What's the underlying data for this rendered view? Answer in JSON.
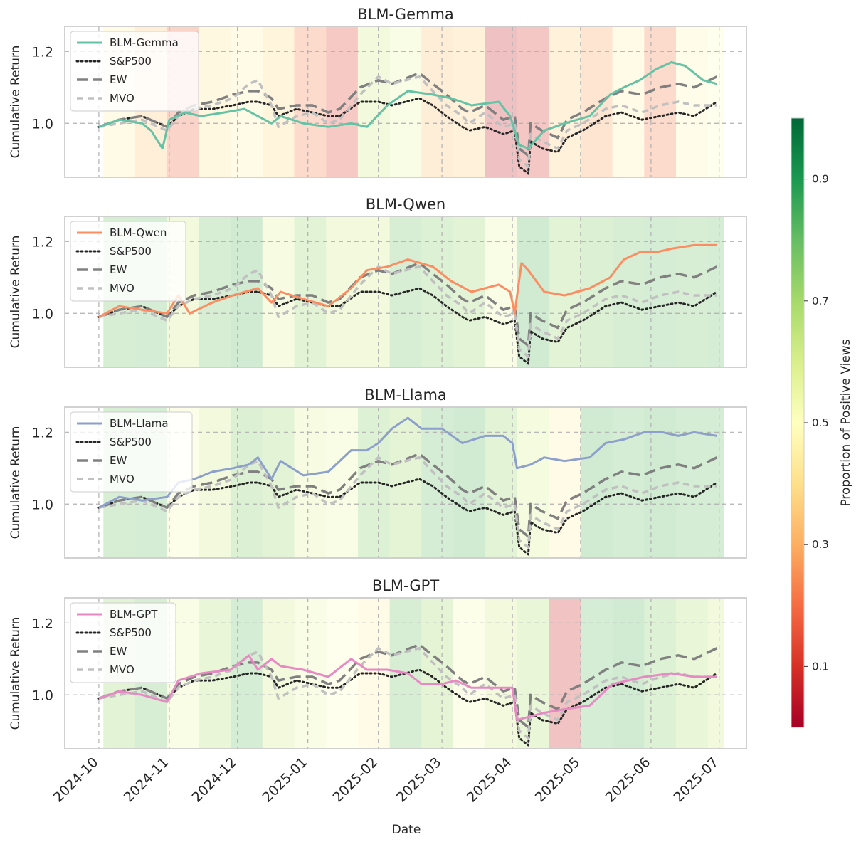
{
  "chart_data": {
    "type": "line",
    "x_label": "Date",
    "y_label": "Cumulative Return",
    "x_ticks": [
      "2024-10",
      "2024-11",
      "2024-12",
      "2025-01",
      "2025-02",
      "2025-03",
      "2025-04",
      "2025-05",
      "2025-06",
      "2025-07"
    ],
    "y_ticks": [
      "1.0",
      "1.2"
    ],
    "y_range": [
      0.85,
      1.27
    ],
    "grid": true,
    "legend_position": "upper-left",
    "colorbar": {
      "label": "Proportion of Positive Views",
      "ticks": [
        "0.1",
        "0.3",
        "0.5",
        "0.7",
        "0.9"
      ],
      "range": [
        0.0,
        1.0
      ],
      "colormap": "RdYlGn"
    },
    "week_starts": [
      "2024-10-03",
      "2024-10-17",
      "2024-10-31",
      "2024-11-14",
      "2024-11-28",
      "2024-12-12",
      "2024-12-26",
      "2025-01-09",
      "2025-01-23",
      "2025-02-06",
      "2025-02-20",
      "2025-03-06",
      "2025-03-20",
      "2025-04-03",
      "2025-04-17",
      "2025-05-01",
      "2025-05-15",
      "2025-05-29",
      "2025-06-12",
      "2025-06-26"
    ],
    "benchmarks": {
      "x": [
        "2024-10-01",
        "2024-10-10",
        "2024-10-20",
        "2024-10-31",
        "2024-11-05",
        "2024-11-12",
        "2024-11-20",
        "2024-11-29",
        "2024-12-06",
        "2024-12-10",
        "2024-12-16",
        "2024-12-19",
        "2024-12-27",
        "2025-01-03",
        "2025-01-10",
        "2025-01-15",
        "2025-01-24",
        "2025-02-01",
        "2025-02-07",
        "2025-02-19",
        "2025-02-25",
        "2025-03-03",
        "2025-03-10",
        "2025-03-13",
        "2025-03-20",
        "2025-03-28",
        "2025-04-02",
        "2025-04-04",
        "2025-04-08",
        "2025-04-09",
        "2025-04-14",
        "2025-04-21",
        "2025-04-25",
        "2025-05-02",
        "2025-05-12",
        "2025-05-19",
        "2025-05-28",
        "2025-06-05",
        "2025-06-13",
        "2025-06-20",
        "2025-06-30"
      ],
      "series": [
        {
          "name": "S&P500",
          "values": [
            0.99,
            1.01,
            1.02,
            0.99,
            1.02,
            1.04,
            1.04,
            1.05,
            1.06,
            1.06,
            1.05,
            1.02,
            1.04,
            1.03,
            1.02,
            1.02,
            1.06,
            1.06,
            1.05,
            1.07,
            1.05,
            1.02,
            0.99,
            0.98,
            0.99,
            0.97,
            0.98,
            0.88,
            0.86,
            0.95,
            0.93,
            0.92,
            0.96,
            0.98,
            1.02,
            1.03,
            1.01,
            1.02,
            1.03,
            1.02,
            1.06
          ]
        },
        {
          "name": "EW",
          "values": [
            0.99,
            1.01,
            1.02,
            0.99,
            1.03,
            1.05,
            1.06,
            1.08,
            1.09,
            1.09,
            1.07,
            1.04,
            1.05,
            1.05,
            1.03,
            1.04,
            1.1,
            1.12,
            1.11,
            1.14,
            1.11,
            1.08,
            1.04,
            1.03,
            1.05,
            1.01,
            1.02,
            0.93,
            0.91,
            1.0,
            0.98,
            0.96,
            1.01,
            1.03,
            1.07,
            1.09,
            1.08,
            1.1,
            1.11,
            1.1,
            1.13
          ]
        },
        {
          "name": "MVO",
          "values": [
            0.99,
            1.0,
            1.01,
            0.98,
            1.02,
            1.04,
            1.05,
            1.07,
            1.11,
            1.12,
            1.05,
            0.99,
            1.02,
            1.03,
            1.0,
            1.01,
            1.08,
            1.13,
            1.11,
            1.13,
            1.09,
            1.05,
            1.02,
            1.0,
            1.03,
            0.99,
            1.0,
            0.9,
            0.88,
            0.97,
            0.95,
            0.93,
            0.98,
            1.0,
            1.04,
            1.05,
            1.03,
            1.05,
            1.06,
            1.05,
            1.05
          ]
        }
      ]
    },
    "panels": [
      {
        "title": "BLM-Gemma",
        "series_name": "BLM-Gemma",
        "color": "#66c2a5",
        "x": [
          "2024-10-01",
          "2024-10-10",
          "2024-10-20",
          "2024-10-24",
          "2024-10-29",
          "2024-11-01",
          "2024-11-08",
          "2024-11-15",
          "2024-11-25",
          "2024-12-04",
          "2024-12-10",
          "2024-12-16",
          "2024-12-20",
          "2024-12-30",
          "2025-01-10",
          "2025-01-20",
          "2025-01-27",
          "2025-02-05",
          "2025-02-14",
          "2025-02-25",
          "2025-03-05",
          "2025-03-14",
          "2025-03-26",
          "2025-03-31",
          "2025-04-04",
          "2025-04-08",
          "2025-04-15",
          "2025-04-24",
          "2025-05-05",
          "2025-05-14",
          "2025-05-20",
          "2025-05-27",
          "2025-06-03",
          "2025-06-10",
          "2025-06-16",
          "2025-06-24",
          "2025-06-30"
        ],
        "values": [
          0.99,
          1.01,
          1.0,
          0.98,
          0.93,
          1.01,
          1.03,
          1.02,
          1.03,
          1.04,
          1.02,
          1.0,
          1.02,
          1.0,
          0.99,
          1.0,
          0.99,
          1.05,
          1.09,
          1.08,
          1.07,
          1.05,
          1.06,
          1.02,
          0.94,
          0.93,
          0.98,
          1.0,
          1.02,
          1.08,
          1.1,
          1.12,
          1.15,
          1.17,
          1.16,
          1.12,
          1.11
        ],
        "shading": [
          0.45,
          0.35,
          0.18,
          0.42,
          0.45,
          0.38,
          0.22,
          0.12,
          0.62,
          0.55,
          0.33,
          0.36,
          0.07,
          0.11,
          0.36,
          0.28,
          0.45,
          0.22,
          0.48,
          0.5
        ]
      },
      {
        "title": "BLM-Qwen",
        "series_name": "BLM-Qwen",
        "color": "#fc8d62",
        "x": [
          "2024-10-01",
          "2024-10-10",
          "2024-10-20",
          "2024-10-31",
          "2024-11-05",
          "2024-11-10",
          "2024-11-20",
          "2024-11-29",
          "2024-12-10",
          "2024-12-16",
          "2024-12-20",
          "2024-12-30",
          "2025-01-10",
          "2025-01-20",
          "2025-01-27",
          "2025-02-05",
          "2025-02-14",
          "2025-02-25",
          "2025-03-05",
          "2025-03-14",
          "2025-03-26",
          "2025-03-31",
          "2025-04-02",
          "2025-04-05",
          "2025-04-08",
          "2025-04-15",
          "2025-04-24",
          "2025-05-05",
          "2025-05-14",
          "2025-05-20",
          "2025-05-27",
          "2025-06-03",
          "2025-06-10",
          "2025-06-20",
          "2025-06-30"
        ],
        "values": [
          0.99,
          1.02,
          1.01,
          1.0,
          1.05,
          1.0,
          1.03,
          1.05,
          1.07,
          1.03,
          1.06,
          1.04,
          1.02,
          1.07,
          1.12,
          1.13,
          1.15,
          1.13,
          1.09,
          1.06,
          1.08,
          1.06,
          1.0,
          1.14,
          1.12,
          1.06,
          1.05,
          1.07,
          1.1,
          1.15,
          1.17,
          1.17,
          1.18,
          1.19,
          1.19
        ],
        "shading": [
          0.78,
          0.8,
          0.62,
          0.78,
          0.82,
          0.58,
          0.72,
          0.62,
          0.62,
          0.78,
          0.75,
          0.72,
          0.55,
          0.82,
          0.72,
          0.76,
          0.78,
          0.8,
          0.78,
          0.8
        ]
      },
      {
        "title": "BLM-Llama",
        "series_name": "BLM-Llama",
        "color": "#8da0cb",
        "x": [
          "2024-10-01",
          "2024-10-10",
          "2024-10-20",
          "2024-10-31",
          "2024-11-05",
          "2024-11-12",
          "2024-11-20",
          "2024-11-29",
          "2024-12-06",
          "2024-12-10",
          "2024-12-16",
          "2024-12-20",
          "2024-12-30",
          "2025-01-10",
          "2025-01-20",
          "2025-01-27",
          "2025-02-01",
          "2025-02-07",
          "2025-02-14",
          "2025-02-20",
          "2025-03-01",
          "2025-03-10",
          "2025-03-20",
          "2025-03-28",
          "2025-04-01",
          "2025-04-03",
          "2025-04-09",
          "2025-04-15",
          "2025-04-24",
          "2025-05-05",
          "2025-05-12",
          "2025-05-20",
          "2025-05-29",
          "2025-06-06",
          "2025-06-13",
          "2025-06-20",
          "2025-06-30"
        ],
        "values": [
          0.99,
          1.02,
          1.01,
          1.02,
          1.06,
          1.07,
          1.09,
          1.1,
          1.11,
          1.13,
          1.07,
          1.12,
          1.08,
          1.09,
          1.15,
          1.15,
          1.17,
          1.21,
          1.24,
          1.21,
          1.21,
          1.17,
          1.19,
          1.19,
          1.17,
          1.1,
          1.11,
          1.13,
          1.12,
          1.13,
          1.17,
          1.18,
          1.2,
          1.2,
          1.19,
          1.2,
          1.19
        ],
        "shading": [
          0.78,
          0.8,
          0.52,
          0.62,
          0.76,
          0.72,
          0.58,
          0.55,
          0.75,
          0.7,
          0.8,
          0.82,
          0.72,
          0.6,
          0.45,
          0.82,
          0.8,
          0.82,
          0.8,
          0.8
        ]
      },
      {
        "title": "BLM-GPT",
        "series_name": "BLM-GPT",
        "color": "#e78ac3",
        "x": [
          "2024-10-01",
          "2024-10-10",
          "2024-10-20",
          "2024-10-31",
          "2024-11-05",
          "2024-11-15",
          "2024-11-28",
          "2024-12-06",
          "2024-12-10",
          "2024-12-16",
          "2024-12-20",
          "2024-12-30",
          "2025-01-10",
          "2025-01-20",
          "2025-01-27",
          "2025-02-05",
          "2025-02-14",
          "2025-02-20",
          "2025-03-01",
          "2025-03-07",
          "2025-03-14",
          "2025-03-24",
          "2025-04-01",
          "2025-04-03",
          "2025-04-09",
          "2025-04-15",
          "2025-04-24",
          "2025-05-05",
          "2025-05-15",
          "2025-05-29",
          "2025-06-10",
          "2025-06-20",
          "2025-06-30"
        ],
        "values": [
          0.99,
          1.01,
          1.0,
          0.98,
          1.04,
          1.06,
          1.07,
          1.11,
          1.07,
          1.1,
          1.08,
          1.07,
          1.05,
          1.1,
          1.07,
          1.07,
          1.06,
          1.03,
          1.03,
          1.04,
          1.02,
          1.02,
          1.02,
          0.93,
          0.94,
          0.95,
          0.96,
          0.97,
          1.03,
          1.05,
          1.06,
          1.05,
          1.05
        ],
        "shading": [
          0.72,
          0.78,
          0.55,
          0.68,
          0.8,
          0.62,
          0.55,
          0.5,
          0.45,
          0.78,
          0.7,
          0.52,
          0.62,
          0.68,
          0.08,
          0.8,
          0.82,
          0.75,
          0.68,
          0.62
        ]
      }
    ]
  }
}
